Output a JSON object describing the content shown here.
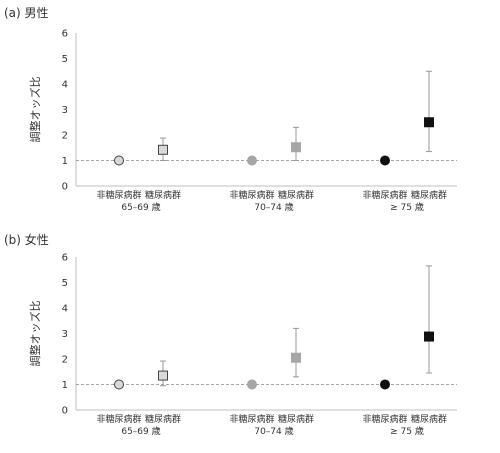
{
  "chart_data": [
    {
      "type": "scatter",
      "title": "(a) 男性",
      "ylabel": "調整オッズ比",
      "ylim": [
        0,
        6
      ],
      "yticks": [
        0,
        1,
        2,
        3,
        4,
        5,
        6
      ],
      "reference_line": 1,
      "groups": [
        "65–69 歳",
        "70–74 歳",
        "≥ 75 歳"
      ],
      "categories": [
        "非糖尿病群",
        "糖尿病群",
        "非糖尿病群",
        "糖尿病群",
        "非糖尿病群",
        "糖尿病群"
      ],
      "points": [
        {
          "category": "非糖尿病群",
          "group": "65–69 歳",
          "value": 1.0,
          "ci": null,
          "marker": "circle",
          "fill": "#d9d9d9",
          "stroke": "#444444"
        },
        {
          "category": "糖尿病群",
          "group": "65–69 歳",
          "value": 1.42,
          "ci": [
            1.0,
            1.88
          ],
          "marker": "square",
          "fill": "#d9d9d9",
          "stroke": "#444444"
        },
        {
          "category": "非糖尿病群",
          "group": "70–74 歳",
          "value": 1.0,
          "ci": null,
          "marker": "circle",
          "fill": "#a6a6a6",
          "stroke": "#a6a6a6"
        },
        {
          "category": "糖尿病群",
          "group": "70–74 歳",
          "value": 1.52,
          "ci": [
            1.0,
            2.3
          ],
          "marker": "square",
          "fill": "#a6a6a6",
          "stroke": "#a6a6a6"
        },
        {
          "category": "非糖尿病群",
          "group": "≥ 75 歳",
          "value": 1.0,
          "ci": null,
          "marker": "circle",
          "fill": "#111111",
          "stroke": "#111111"
        },
        {
          "category": "糖尿病群",
          "group": "≥ 75 歳",
          "value": 2.5,
          "ci": [
            1.35,
            4.5
          ],
          "marker": "square",
          "fill": "#111111",
          "stroke": "#111111"
        }
      ]
    },
    {
      "type": "scatter",
      "title": "(b) 女性",
      "ylabel": "調整オッズ比",
      "ylim": [
        0,
        6
      ],
      "yticks": [
        0,
        1,
        2,
        3,
        4,
        5,
        6
      ],
      "reference_line": 1,
      "groups": [
        "65–69 歳",
        "70–74 歳",
        "≥ 75 歳"
      ],
      "categories": [
        "非糖尿病群",
        "糖尿病群",
        "非糖尿病群",
        "糖尿病群",
        "非糖尿病群",
        "糖尿病群"
      ],
      "points": [
        {
          "category": "非糖尿病群",
          "group": "65–69 歳",
          "value": 1.0,
          "ci": null,
          "marker": "circle",
          "fill": "#d9d9d9",
          "stroke": "#444444"
        },
        {
          "category": "糖尿病群",
          "group": "65–69 歳",
          "value": 1.35,
          "ci": [
            0.95,
            1.92
          ],
          "marker": "square",
          "fill": "#d9d9d9",
          "stroke": "#444444"
        },
        {
          "category": "非糖尿病群",
          "group": "70–74 歳",
          "value": 1.0,
          "ci": null,
          "marker": "circle",
          "fill": "#a6a6a6",
          "stroke": "#a6a6a6"
        },
        {
          "category": "糖尿病群",
          "group": "70–74 歳",
          "value": 2.05,
          "ci": [
            1.3,
            3.2
          ],
          "marker": "square",
          "fill": "#a6a6a6",
          "stroke": "#a6a6a6"
        },
        {
          "category": "非糖尿病群",
          "group": "≥ 75 歳",
          "value": 1.0,
          "ci": null,
          "marker": "circle",
          "fill": "#111111",
          "stroke": "#111111"
        },
        {
          "category": "糖尿病群",
          "group": "≥ 75 歳",
          "value": 2.88,
          "ci": [
            1.45,
            5.65
          ],
          "marker": "square",
          "fill": "#111111",
          "stroke": "#111111"
        }
      ]
    }
  ]
}
